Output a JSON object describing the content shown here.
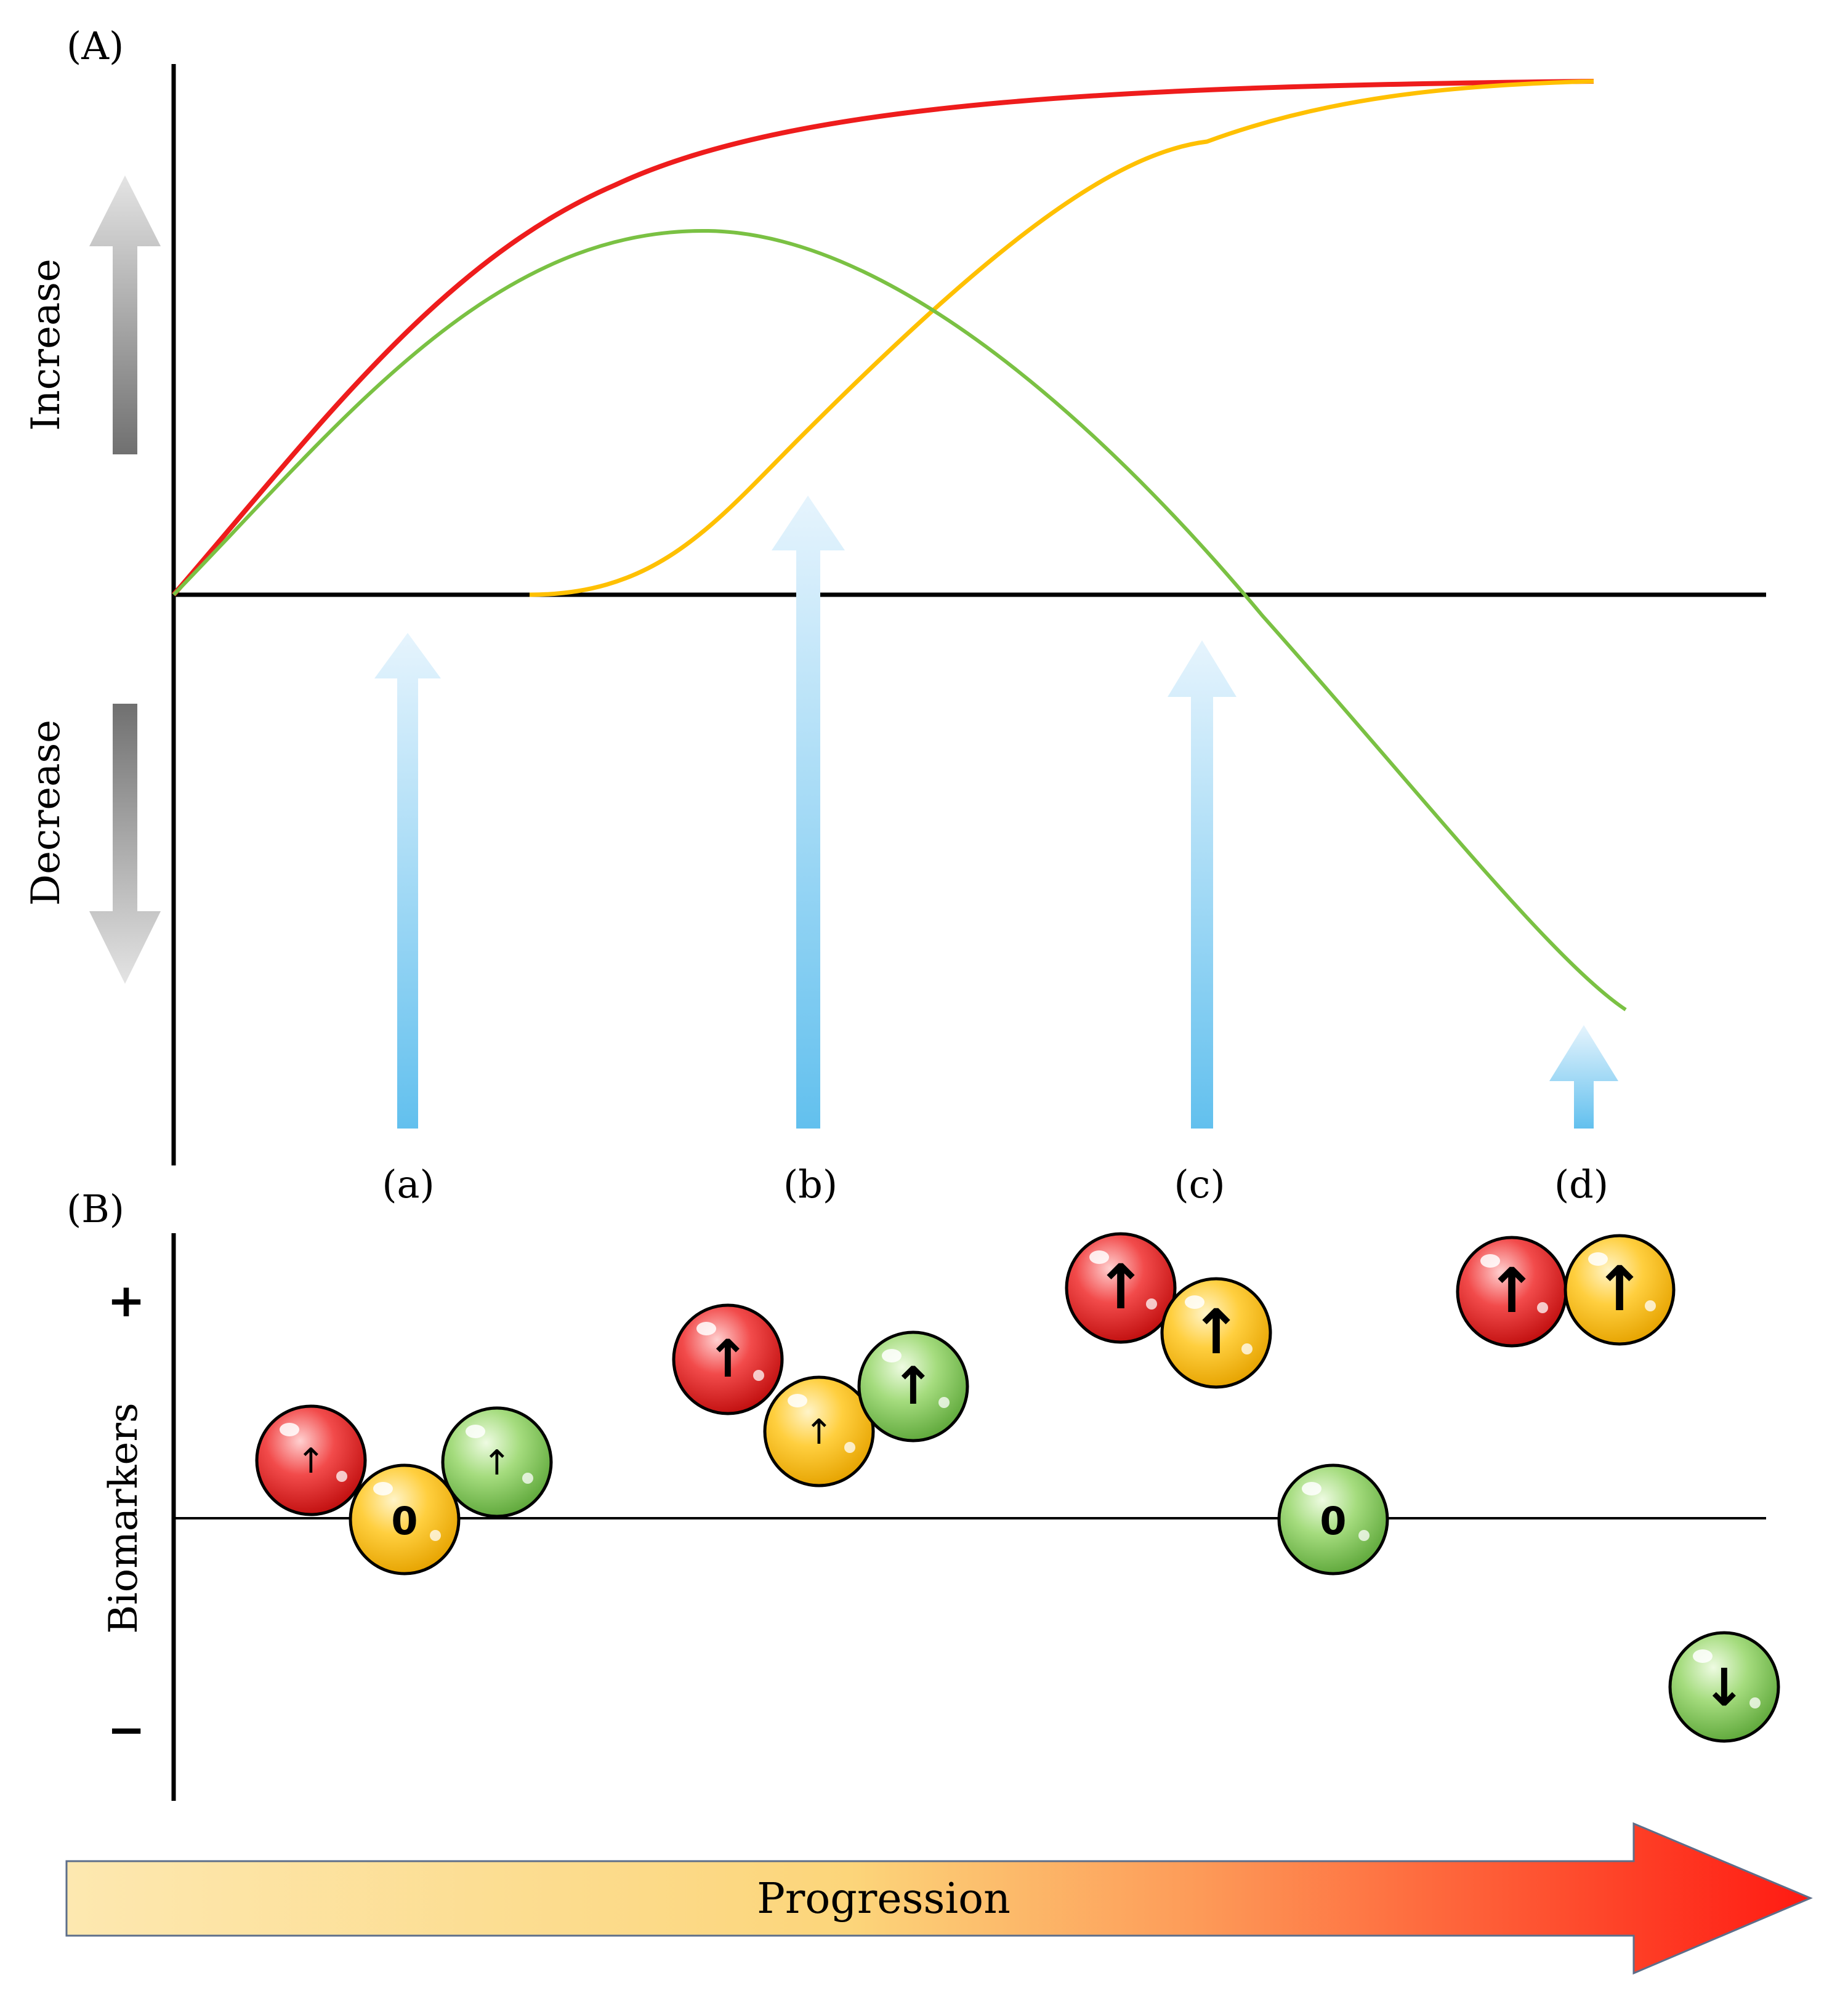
{
  "panel_a": {
    "label": "(A)",
    "increase_label": "Increase",
    "decrease_label": "Decrease",
    "curves": [
      {
        "name": "red-curve",
        "color": "#ee1c1c"
      },
      {
        "name": "orange-curve",
        "color": "#ffc000"
      },
      {
        "name": "green-curve",
        "color": "#7ac143"
      }
    ]
  },
  "stages": [
    {
      "label": "(a)"
    },
    {
      "label": "(b)"
    },
    {
      "label": "(c)"
    },
    {
      "label": "(d)"
    }
  ],
  "panel_b": {
    "label": "(B)",
    "y_label": "Biomarkers",
    "plus_label": "+",
    "minus_label": "−",
    "balls": [
      {
        "stage": "a",
        "color": "red",
        "symbol": "↑"
      },
      {
        "stage": "a",
        "color": "yellow",
        "symbol": "0"
      },
      {
        "stage": "a",
        "color": "green",
        "symbol": "↑"
      },
      {
        "stage": "b",
        "color": "red",
        "symbol": "↑"
      },
      {
        "stage": "b",
        "color": "yellow",
        "symbol": "↑"
      },
      {
        "stage": "b",
        "color": "green",
        "symbol": "↑"
      },
      {
        "stage": "c",
        "color": "red",
        "symbol": "↑"
      },
      {
        "stage": "c",
        "color": "yellow",
        "symbol": "↑"
      },
      {
        "stage": "c",
        "color": "green",
        "symbol": "0"
      },
      {
        "stage": "d",
        "color": "red",
        "symbol": "↑"
      },
      {
        "stage": "d",
        "color": "yellow",
        "symbol": "↑"
      },
      {
        "stage": "d",
        "color": "green",
        "symbol": "↓"
      }
    ]
  },
  "progression": {
    "label": "Progression"
  },
  "colors": {
    "red": "#ee1c1c",
    "yellow": "#ffc000",
    "green": "#7ac143",
    "blue_arrow": "#6cc4f0"
  }
}
